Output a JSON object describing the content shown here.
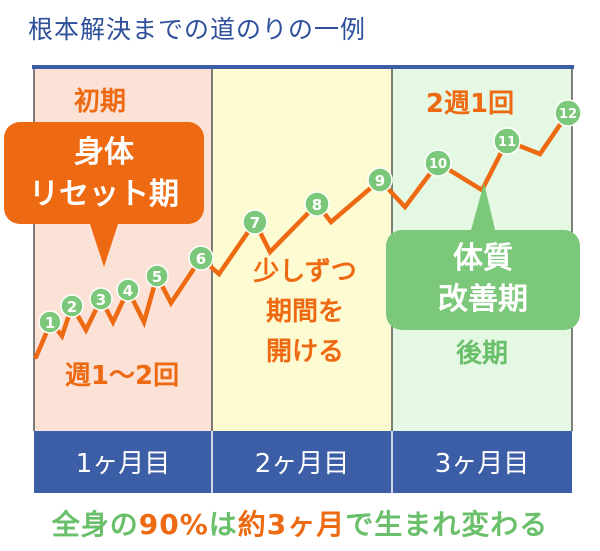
{
  "title": "根本解決までの道のりの一例",
  "phases": [
    {
      "label": "初期",
      "fill": "#fbe1d6"
    },
    {
      "label": "",
      "fill": "#fdfbd2"
    },
    {
      "label": "後期",
      "fill": "#e4f8e4"
    }
  ],
  "months": [
    "1ヶ月目",
    "2ヶ月目",
    "3ヶ月目"
  ],
  "callouts": {
    "reset": [
      "身体",
      "リセット期"
    ],
    "improve": [
      "体質",
      "改善期"
    ]
  },
  "frequencies": {
    "early": "週1〜2回",
    "middle": [
      "少しずつ",
      "期間を",
      "開ける"
    ],
    "late": "2週1回"
  },
  "markers": [
    "1",
    "2",
    "3",
    "4",
    "5",
    "6",
    "7",
    "8",
    "9",
    "10",
    "11",
    "12"
  ],
  "footer": {
    "part1": "全身の",
    "highlight1": "90%",
    "part2": "は",
    "highlight2": "約3ヶ月",
    "part3": "で生まれ変わる"
  },
  "colors": {
    "title": "#2e4f9a",
    "band": "#3b5ea6",
    "orange": "#ee6a12",
    "green": "#7cc87a",
    "footer_green": "#6abf6a"
  }
}
